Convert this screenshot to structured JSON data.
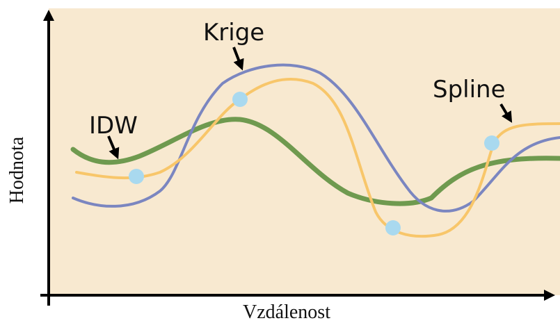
{
  "labels": {
    "krige": "Krige",
    "idw": "IDW",
    "spline": "Spline"
  },
  "axes": {
    "y": "Hodnota",
    "x": "Vzdálenost"
  }
}
